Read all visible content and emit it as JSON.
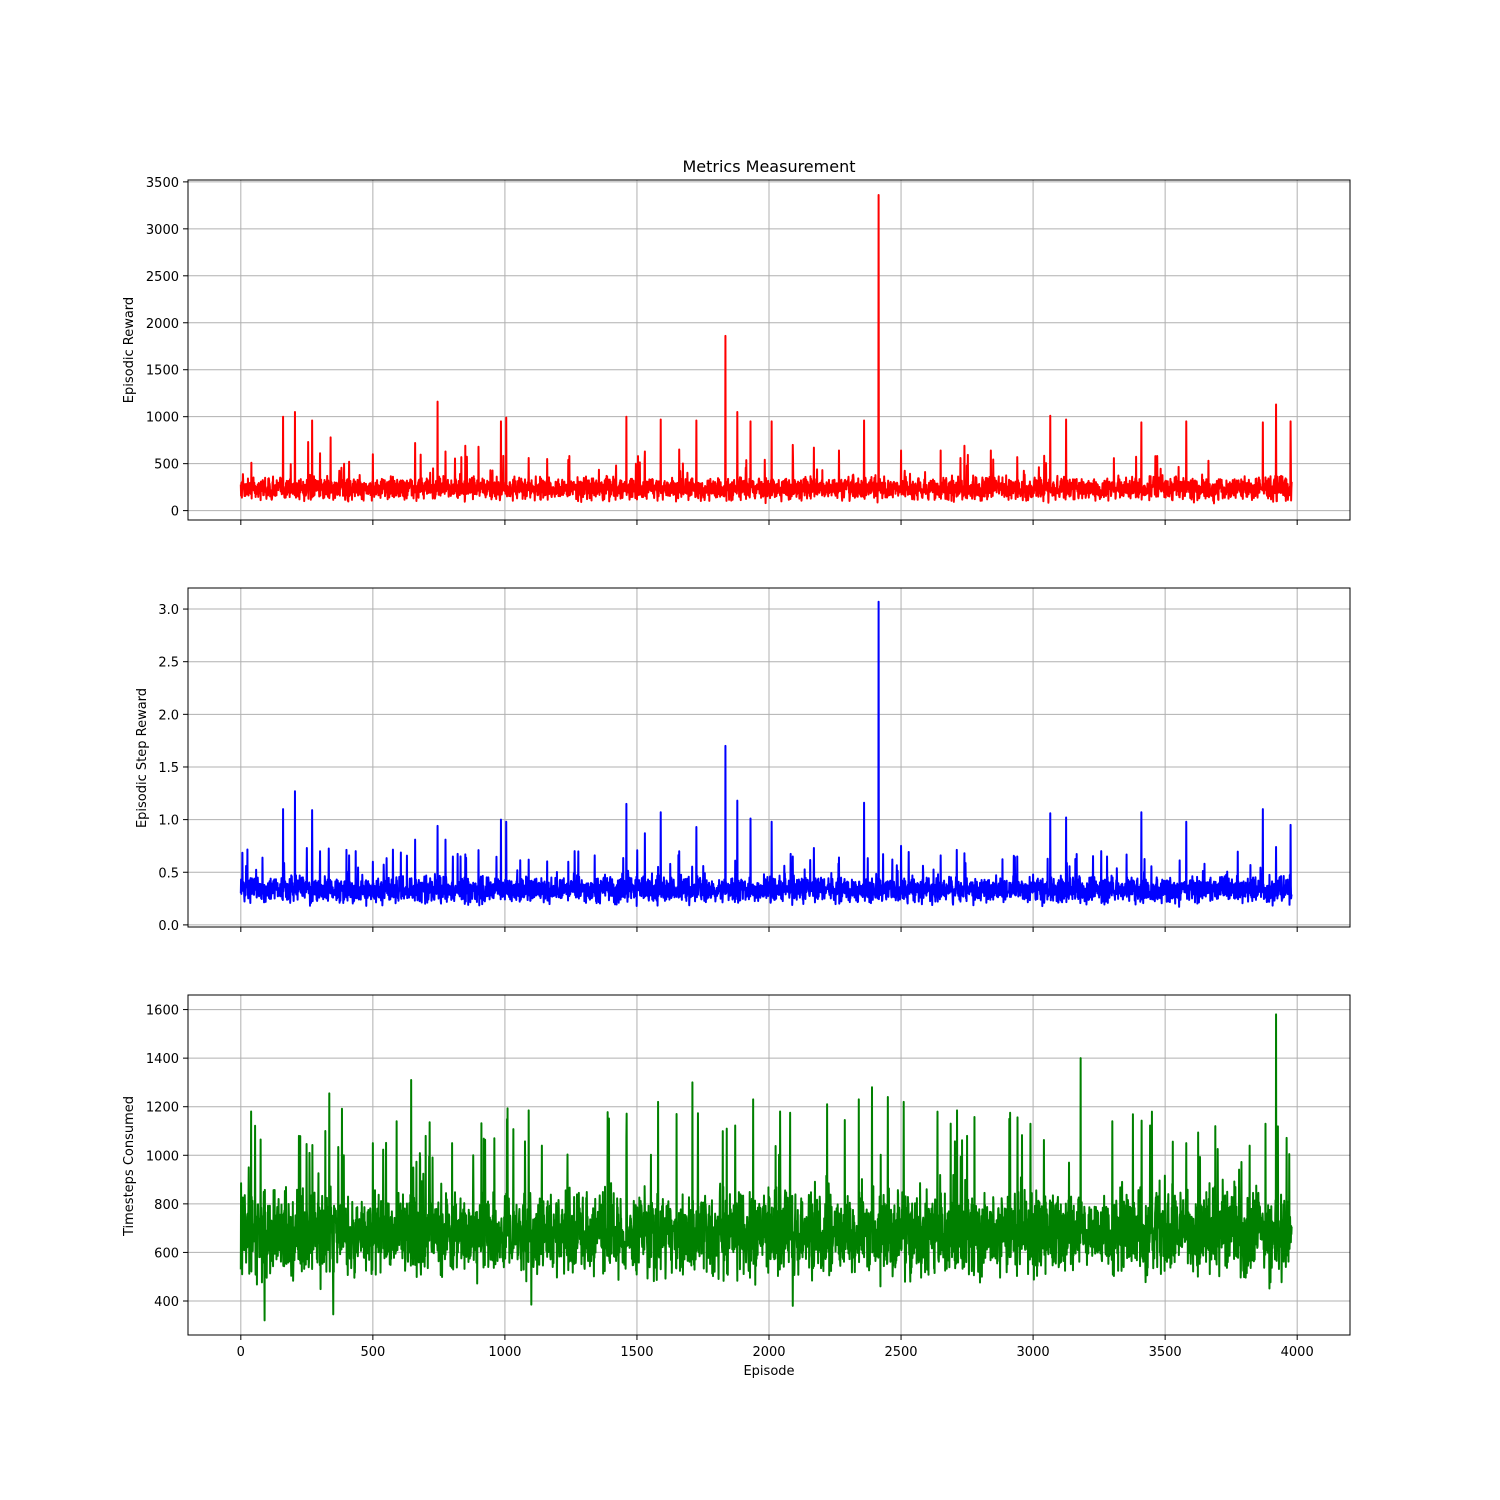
{
  "figure": {
    "title": "Metrics Measurement",
    "xlabel": "Episode"
  },
  "chart_data": [
    {
      "type": "line",
      "ylabel": "Episodic Reward",
      "xlim": [
        -200,
        4200
      ],
      "ylim": [
        -100,
        3520
      ],
      "xticks": [
        0,
        500,
        1000,
        1500,
        2000,
        2500,
        3000,
        3500,
        4000
      ],
      "yticks": [
        0,
        500,
        1000,
        1500,
        2000,
        2500,
        3000,
        3500
      ],
      "show_x_tick_labels": false,
      "grid": true,
      "color": "#ff0000",
      "n_points": 3980,
      "baseline_low": 110,
      "baseline_high": 360,
      "spikes": [
        [
          40,
          510
        ],
        [
          160,
          1000
        ],
        [
          205,
          1050
        ],
        [
          255,
          730
        ],
        [
          270,
          960
        ],
        [
          300,
          610
        ],
        [
          340,
          780
        ],
        [
          410,
          520
        ],
        [
          500,
          600
        ],
        [
          660,
          720
        ],
        [
          745,
          1160
        ],
        [
          775,
          630
        ],
        [
          850,
          690
        ],
        [
          900,
          680
        ],
        [
          985,
          950
        ],
        [
          1005,
          990
        ],
        [
          1090,
          560
        ],
        [
          1160,
          550
        ],
        [
          1240,
          540
        ],
        [
          1460,
          1000
        ],
        [
          1530,
          630
        ],
        [
          1590,
          970
        ],
        [
          1660,
          650
        ],
        [
          1725,
          960
        ],
        [
          1835,
          1860
        ],
        [
          1880,
          1050
        ],
        [
          1930,
          950
        ],
        [
          2010,
          950
        ],
        [
          2090,
          700
        ],
        [
          2170,
          670
        ],
        [
          2265,
          640
        ],
        [
          2360,
          960
        ],
        [
          2415,
          3360
        ],
        [
          2500,
          640
        ],
        [
          2650,
          640
        ],
        [
          2740,
          690
        ],
        [
          2840,
          640
        ],
        [
          2940,
          570
        ],
        [
          3065,
          1010
        ],
        [
          3125,
          970
        ],
        [
          3410,
          940
        ],
        [
          3580,
          950
        ],
        [
          3870,
          940
        ],
        [
          3920,
          1130
        ],
        [
          3975,
          950
        ]
      ]
    },
    {
      "type": "line",
      "ylabel": "Episodic Step Reward",
      "xlim": [
        -200,
        4200
      ],
      "ylim": [
        -0.02,
        3.2
      ],
      "xticks": [
        0,
        500,
        1000,
        1500,
        2000,
        2500,
        3000,
        3500,
        4000
      ],
      "yticks": [
        0.0,
        0.5,
        1.0,
        1.5,
        2.0,
        2.5,
        3.0
      ],
      "show_x_tick_labels": false,
      "grid": true,
      "color": "#0000ff",
      "n_points": 3980,
      "baseline_low": 0.2,
      "baseline_high": 0.47,
      "spikes": [
        [
          20,
          0.56
        ],
        [
          160,
          1.1
        ],
        [
          205,
          1.27
        ],
        [
          250,
          0.73
        ],
        [
          270,
          1.09
        ],
        [
          300,
          0.7
        ],
        [
          410,
          0.66
        ],
        [
          500,
          0.6
        ],
        [
          660,
          0.81
        ],
        [
          745,
          0.94
        ],
        [
          775,
          0.81
        ],
        [
          850,
          0.67
        ],
        [
          900,
          0.71
        ],
        [
          985,
          1.0
        ],
        [
          1005,
          0.98
        ],
        [
          1090,
          0.62
        ],
        [
          1240,
          0.6
        ],
        [
          1340,
          0.66
        ],
        [
          1460,
          1.15
        ],
        [
          1530,
          0.87
        ],
        [
          1590,
          1.07
        ],
        [
          1660,
          0.7
        ],
        [
          1725,
          0.93
        ],
        [
          1835,
          1.7
        ],
        [
          1880,
          1.18
        ],
        [
          1930,
          1.01
        ],
        [
          2010,
          0.98
        ],
        [
          2090,
          0.65
        ],
        [
          2170,
          0.73
        ],
        [
          2265,
          0.64
        ],
        [
          2360,
          1.16
        ],
        [
          2415,
          3.07
        ],
        [
          2500,
          0.75
        ],
        [
          2650,
          0.66
        ],
        [
          2740,
          0.68
        ],
        [
          2940,
          0.65
        ],
        [
          3065,
          1.06
        ],
        [
          3125,
          1.02
        ],
        [
          3280,
          0.65
        ],
        [
          3410,
          1.07
        ],
        [
          3580,
          0.98
        ],
        [
          3870,
          1.1
        ],
        [
          3920,
          0.74
        ],
        [
          3975,
          0.95
        ]
      ]
    },
    {
      "type": "line",
      "ylabel": "Timesteps Consumed",
      "xlim": [
        -200,
        4200
      ],
      "ylim": [
        260,
        1660
      ],
      "xticks": [
        0,
        500,
        1000,
        1500,
        2000,
        2500,
        3000,
        3500,
        4000
      ],
      "yticks": [
        400,
        600,
        800,
        1000,
        1200,
        1400,
        1600
      ],
      "xticklabels": [
        "0",
        "500",
        "1000",
        "1500",
        "2000",
        "2500",
        "3000",
        "3500",
        "4000"
      ],
      "show_x_tick_labels": true,
      "grid": true,
      "color": "#008000",
      "n_points": 3980,
      "baseline_low": 500,
      "baseline_high": 860,
      "spikes": [
        [
          30,
          950
        ],
        [
          75,
          1065
        ],
        [
          90,
          320
        ],
        [
          220,
          1080
        ],
        [
          260,
          1010
        ],
        [
          320,
          1100
        ],
        [
          335,
          1255
        ],
        [
          350,
          345
        ],
        [
          390,
          1000
        ],
        [
          500,
          1050
        ],
        [
          590,
          1140
        ],
        [
          645,
          1310
        ],
        [
          700,
          1080
        ],
        [
          800,
          1050
        ],
        [
          880,
          1000
        ],
        [
          960,
          1070
        ],
        [
          1090,
          1185
        ],
        [
          1100,
          385
        ],
        [
          1140,
          1040
        ],
        [
          1460,
          1070
        ],
        [
          1580,
          1220
        ],
        [
          1650,
          1170
        ],
        [
          1710,
          1300
        ],
        [
          1840,
          1110
        ],
        [
          1940,
          1230
        ],
        [
          2080,
          1175
        ],
        [
          2090,
          380
        ],
        [
          2220,
          1210
        ],
        [
          2340,
          1230
        ],
        [
          2390,
          1280
        ],
        [
          2450,
          1240
        ],
        [
          2510,
          1220
        ],
        [
          2750,
          1080
        ],
        [
          2910,
          1150
        ],
        [
          2990,
          1130
        ],
        [
          3180,
          1400
        ],
        [
          3300,
          1140
        ],
        [
          3450,
          1180
        ],
        [
          3580,
          1050
        ],
        [
          3690,
          1120
        ],
        [
          3820,
          1040
        ],
        [
          3880,
          1130
        ],
        [
          3920,
          1580
        ],
        [
          3970,
          1005
        ]
      ]
    }
  ]
}
